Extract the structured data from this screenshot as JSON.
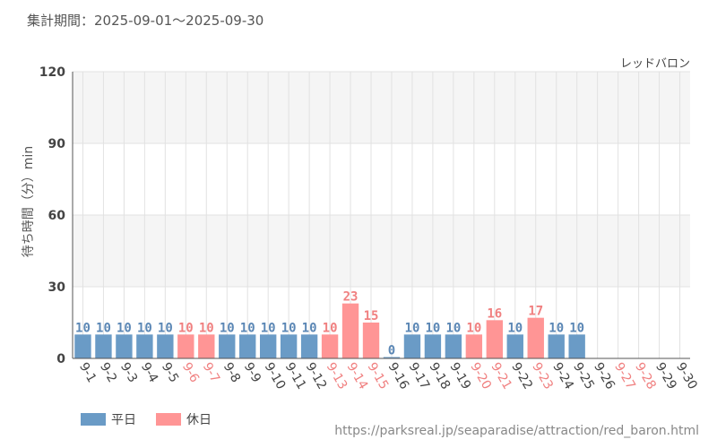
{
  "header": {
    "period": "集計期間：2025-09-01～2025-09-30",
    "attraction": "レッドバロン"
  },
  "legend": {
    "weekday": "平日",
    "holiday": "休日"
  },
  "footer": {
    "url": "https://parksreal.jp/seaparadise/attraction/red_baron.html"
  },
  "colors": {
    "weekday": "#6a9bc6",
    "holiday": "#ff9595",
    "weekday_text": "#5b87b5",
    "holiday_text": "#f08080",
    "axis_text": "#444444"
  },
  "chart_data": {
    "type": "bar",
    "title": "",
    "xlabel": "",
    "ylabel": "待ち時間（分）min",
    "ylim": [
      0,
      120
    ],
    "yticks": [
      0,
      30,
      60,
      90,
      120
    ],
    "categories": [
      "9-1",
      "9-2",
      "9-3",
      "9-4",
      "9-5",
      "9-6",
      "9-7",
      "9-8",
      "9-9",
      "9-10",
      "9-11",
      "9-12",
      "9-13",
      "9-14",
      "9-15",
      "9-16",
      "9-17",
      "9-18",
      "9-19",
      "9-20",
      "9-21",
      "9-22",
      "9-23",
      "9-24",
      "9-25",
      "9-26",
      "9-27",
      "9-28",
      "9-29",
      "9-30"
    ],
    "values": [
      10,
      10,
      10,
      10,
      10,
      10,
      10,
      10,
      10,
      10,
      10,
      10,
      10,
      23,
      15,
      0,
      10,
      10,
      10,
      10,
      16,
      10,
      17,
      10,
      10,
      null,
      null,
      null,
      null,
      null
    ],
    "labels": [
      "10",
      "10",
      "10",
      "10",
      "10",
      "10",
      "10",
      "10",
      "10",
      "10",
      "10",
      "10",
      "10",
      "23",
      "15",
      "0",
      "10",
      "10",
      "10",
      "10",
      "16",
      "10",
      "17",
      "10",
      "10",
      "",
      "",
      "",
      "",
      ""
    ],
    "day_type": [
      "weekday",
      "weekday",
      "weekday",
      "weekday",
      "weekday",
      "holiday",
      "holiday",
      "weekday",
      "weekday",
      "weekday",
      "weekday",
      "weekday",
      "holiday",
      "holiday",
      "holiday",
      "weekday",
      "weekday",
      "weekday",
      "weekday",
      "holiday",
      "holiday",
      "weekday",
      "holiday",
      "weekday",
      "weekday",
      "weekday",
      "holiday",
      "holiday",
      "weekday",
      "weekday"
    ]
  }
}
